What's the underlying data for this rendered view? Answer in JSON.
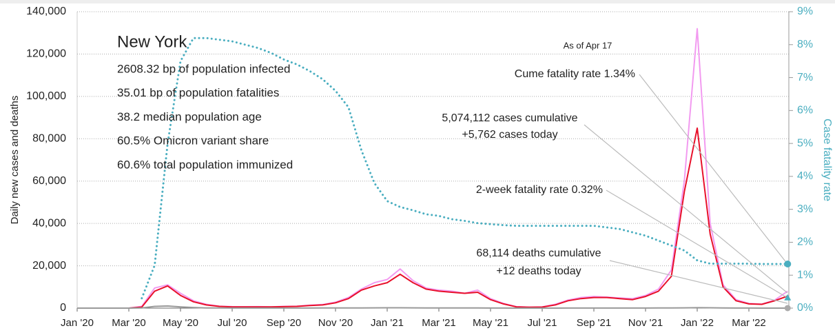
{
  "chart_data": {
    "type": "line",
    "y_label": "Daily new cases and deaths",
    "y2_label": "Case fatality rate",
    "categories": [
      "Jan '20",
      null,
      null,
      null,
      "Mar '20",
      null,
      null,
      null,
      "May '20",
      null,
      null,
      null,
      "Jul '20",
      null,
      null,
      null,
      "Sep '20",
      null,
      null,
      null,
      "Nov '20",
      null,
      null,
      null,
      "Jan '21",
      null,
      null,
      null,
      "Mar '21",
      null,
      null,
      null,
      "May '21",
      null,
      null,
      null,
      "Jul '21",
      null,
      null,
      null,
      "Sep '21",
      null,
      null,
      null,
      "Nov '21",
      null,
      null,
      null,
      "Jan '22",
      null,
      null,
      null,
      "Mar '22",
      null,
      null,
      null
    ],
    "series": [
      {
        "color": "#f29af0",
        "values": [
          0,
          0,
          0,
          0,
          0,
          800,
          9500,
          11000,
          7000,
          3500,
          1800,
          900,
          700,
          650,
          700,
          600,
          800,
          900,
          1400,
          1700,
          2800,
          5000,
          9000,
          12000,
          13500,
          18500,
          13000,
          9500,
          8500,
          8000,
          7000,
          8500,
          4500,
          2200,
          700,
          450,
          600,
          1800,
          3800,
          5000,
          5500,
          5200,
          4800,
          4500,
          6000,
          9000,
          18000,
          60000,
          132000,
          40000,
          11000,
          4000,
          2200,
          1900,
          3800,
          8000
        ]
      },
      {
        "color": "#e8102a",
        "values": [
          0,
          0,
          0,
          0,
          0,
          500,
          8000,
          10500,
          6000,
          3000,
          1500,
          800,
          600,
          600,
          600,
          600,
          700,
          800,
          1200,
          1500,
          2500,
          4500,
          8500,
          10500,
          12000,
          16000,
          12000,
          9000,
          8000,
          7500,
          7000,
          7500,
          4000,
          2000,
          600,
          400,
          500,
          1500,
          3500,
          4500,
          5000,
          5000,
          4500,
          4000,
          5500,
          8000,
          15000,
          55000,
          85000,
          35000,
          10000,
          3500,
          2000,
          1800,
          3500,
          5700
        ]
      },
      {
        "color": "#999999",
        "values": [
          0,
          0,
          0,
          0,
          0,
          100,
          800,
          1000,
          600,
          300,
          100,
          60,
          40,
          30,
          30,
          30,
          30,
          30,
          40,
          50,
          60,
          80,
          100,
          120,
          150,
          150,
          120,
          90,
          70,
          60,
          50,
          50,
          30,
          20,
          10,
          10,
          10,
          15,
          20,
          30,
          40,
          40,
          40,
          40,
          40,
          50,
          60,
          120,
          200,
          150,
          80,
          40,
          20,
          15,
          10,
          12
        ]
      },
      {
        "color": "#4aaec0",
        "axis": "y2",
        "values": [
          null,
          null,
          null,
          null,
          null,
          0.3,
          1.3,
          5.0,
          7.5,
          8.2,
          8.2,
          8.15,
          8.1,
          8.0,
          7.9,
          7.75,
          7.55,
          7.4,
          7.2,
          6.95,
          6.6,
          6.1,
          4.8,
          3.8,
          3.25,
          3.07,
          2.97,
          2.85,
          2.8,
          2.7,
          2.65,
          2.58,
          2.55,
          2.52,
          2.5,
          2.5,
          2.5,
          2.5,
          2.5,
          2.5,
          2.5,
          2.45,
          2.4,
          2.3,
          2.2,
          2.05,
          1.9,
          1.75,
          1.45,
          1.35,
          1.35,
          1.35,
          1.35,
          1.34,
          1.34,
          1.34
        ]
      }
    ],
    "end_markers": {
      "cume_fatality_rate": 1.34,
      "two_week_fatality_rate": 0.32
    },
    "ylim": [
      0,
      140000
    ],
    "yticks": [
      0,
      {
        "value": 20000,
        "label": "20,000"
      },
      {
        "value": 40000,
        "label": "40,000"
      },
      {
        "value": 60000,
        "label": "60,000"
      },
      {
        "value": 80000,
        "label": "80,000"
      },
      {
        "value": 100000,
        "label": "100,000"
      },
      {
        "value": 120000,
        "label": "120,000"
      },
      {
        "value": 140000,
        "label": "140,000"
      }
    ],
    "y2lim": [
      0,
      9
    ],
    "y2ticks": [
      {
        "value": 0,
        "label": "0%"
      },
      {
        "value": 1,
        "label": "1%"
      },
      {
        "value": 2,
        "label": "2%"
      },
      {
        "value": 3,
        "label": "3%"
      },
      {
        "value": 4,
        "label": "4%"
      },
      {
        "value": 5,
        "label": "5%"
      },
      {
        "value": 6,
        "label": "6%"
      },
      {
        "value": 7,
        "label": "7%"
      },
      {
        "value": 8,
        "label": "8%"
      },
      {
        "value": 9,
        "label": "9%"
      }
    ],
    "grid": true,
    "info": {
      "title": "New York",
      "lines": [
        "2608.32 bp of population infected",
        "35.01 bp of population fatalities",
        "38.2 median population age",
        "60.5% Omicron variant share",
        "60.6% total population immunized"
      ]
    },
    "annotations": [
      "As of Apr 17",
      "Cume fatality rate 1.34%",
      "5,074,112 cases cumulative",
      "+5,762 cases today",
      "2-week fatality rate 0.32%",
      "68,114 deaths cumulative",
      "+12 deaths today"
    ]
  }
}
